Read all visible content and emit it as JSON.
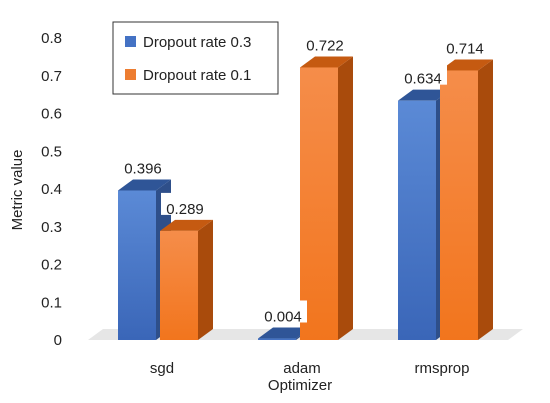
{
  "chart_data": {
    "type": "bar",
    "categories": [
      "sgd",
      "adam",
      "rmsprop"
    ],
    "series": [
      {
        "name": "Dropout rate 0.3",
        "values": [
          0.396,
          0.004,
          0.634
        ],
        "labels": [
          "0.396",
          "0.004",
          "0.634"
        ],
        "color": "#4472C4"
      },
      {
        "name": "Dropout rate 0.1",
        "values": [
          0.289,
          0.722,
          0.714
        ],
        "labels": [
          "0.289",
          "0.722",
          "0.714"
        ],
        "color": "#ED7D31"
      }
    ],
    "xlabel": "Optimizer",
    "ylabel": "Metric value",
    "ylim": [
      0,
      0.8
    ],
    "yticks": [
      "0",
      "0.1",
      "0.2",
      "0.3",
      "0.4",
      "0.5",
      "0.6",
      "0.7",
      "0.8"
    ],
    "legend_position": "top-left",
    "grid": false,
    "style": "3d-column"
  }
}
